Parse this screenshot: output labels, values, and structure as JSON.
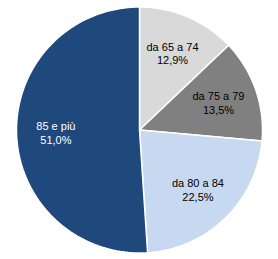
{
  "chart_data": {
    "type": "pie",
    "categories": [
      "da 65 a 74",
      "da 75 a 79",
      "da 80 a 84",
      "85 e più"
    ],
    "values": [
      12.9,
      13.5,
      22.5,
      51.0
    ],
    "value_labels": [
      "12,9%",
      "13,5%",
      "22,5%",
      "51,0%"
    ],
    "colors": [
      "#d9d9d9",
      "#808080",
      "#c6d9f1",
      "#1f497d"
    ],
    "data_labels": true,
    "tick_labels": false
  }
}
